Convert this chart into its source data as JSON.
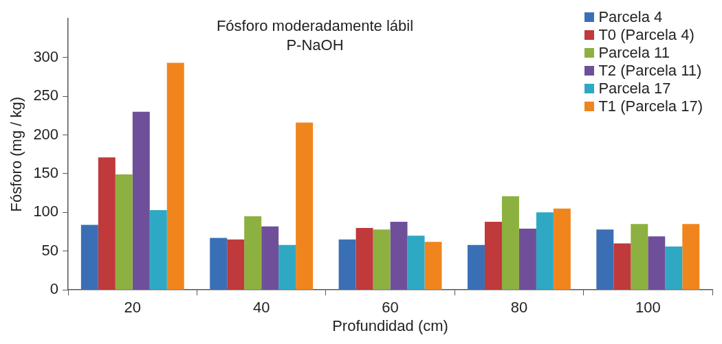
{
  "chart_data": {
    "type": "bar",
    "title": "Fósforo moderadamente lábil",
    "subtitle": "P-NaOH",
    "xlabel": "Profundidad (cm)",
    "ylabel": "Fósforo (mg / kg)",
    "categories": [
      "20",
      "40",
      "60",
      "80",
      "100"
    ],
    "series": [
      {
        "name": "Parcela 4",
        "color": "#3a6fb5",
        "values": [
          84,
          67,
          65,
          58,
          78
        ]
      },
      {
        "name": "T0 (Parcela 4)",
        "color": "#c0393b",
        "values": [
          171,
          65,
          80,
          88,
          60
        ]
      },
      {
        "name": "Parcela 11",
        "color": "#8db140",
        "values": [
          149,
          95,
          78,
          121,
          85
        ]
      },
      {
        "name": "T2 (Parcela 11)",
        "color": "#6f4f9a",
        "values": [
          230,
          82,
          88,
          79,
          69
        ]
      },
      {
        "name": "Parcela 17",
        "color": "#2fa8c4",
        "values": [
          103,
          58,
          70,
          100,
          56
        ]
      },
      {
        "name": "T1 (Parcela 17)",
        "color": "#f0851e",
        "values": [
          293,
          216,
          62,
          105,
          85
        ]
      }
    ],
    "ylim": [
      0,
      350
    ],
    "yticks": [
      0,
      50,
      100,
      150,
      200,
      250,
      300
    ],
    "grid": false,
    "legend": "top right"
  }
}
